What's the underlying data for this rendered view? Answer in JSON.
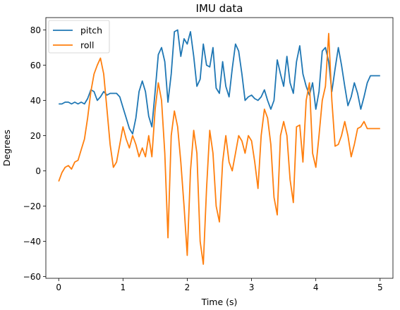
{
  "chart_data": {
    "type": "line",
    "title": "IMU data",
    "xlabel": "Time (s)",
    "ylabel": "Degrees",
    "xlim": [
      -0.2,
      5.2
    ],
    "ylim": [
      -61,
      87
    ],
    "xticks": [
      0,
      1,
      2,
      3,
      4,
      5
    ],
    "yticks": [
      -60,
      -40,
      -20,
      0,
      20,
      40,
      60,
      80
    ],
    "xtick_labels": [
      "0",
      "1",
      "2",
      "3",
      "4",
      "5"
    ],
    "ytick_labels": [
      "−60",
      "−40",
      "−20",
      "0",
      "20",
      "40",
      "60",
      "80"
    ],
    "grid": false,
    "legend_position": "upper-left",
    "series": [
      {
        "name": "pitch",
        "color": "#1f77b4",
        "x": [
          0,
          0.05,
          0.1,
          0.15,
          0.2,
          0.25,
          0.3,
          0.35,
          0.4,
          0.45,
          0.5,
          0.55,
          0.6,
          0.65,
          0.7,
          0.75,
          0.8,
          0.85,
          0.9,
          0.95,
          1.0,
          1.05,
          1.1,
          1.15,
          1.2,
          1.25,
          1.3,
          1.35,
          1.4,
          1.45,
          1.5,
          1.55,
          1.6,
          1.65,
          1.7,
          1.75,
          1.8,
          1.85,
          1.9,
          1.95,
          2.0,
          2.05,
          2.1,
          2.15,
          2.2,
          2.25,
          2.3,
          2.35,
          2.4,
          2.45,
          2.5,
          2.55,
          2.6,
          2.65,
          2.7,
          2.75,
          2.8,
          2.85,
          2.9,
          2.95,
          3.0,
          3.05,
          3.1,
          3.15,
          3.2,
          3.25,
          3.3,
          3.35,
          3.4,
          3.45,
          3.5,
          3.55,
          3.6,
          3.65,
          3.7,
          3.75,
          3.8,
          3.85,
          3.9,
          3.95,
          4.0,
          4.05,
          4.1,
          4.15,
          4.2,
          4.25,
          4.3,
          4.35,
          4.4,
          4.45,
          4.5,
          4.55,
          4.6,
          4.65,
          4.7,
          4.75,
          4.8,
          4.85,
          4.9,
          4.95,
          5.0
        ],
        "values": [
          38,
          38,
          39,
          39,
          38,
          39,
          38,
          39,
          38,
          41,
          46,
          45,
          40,
          42,
          45,
          43,
          44,
          44,
          44,
          42,
          36,
          30,
          24,
          21,
          30,
          45,
          51,
          45,
          31,
          25,
          45,
          66,
          70,
          62,
          39,
          55,
          79,
          80,
          65,
          75,
          72,
          79,
          65,
          48,
          52,
          72,
          60,
          59,
          70,
          47,
          44,
          62,
          48,
          42,
          58,
          72,
          68,
          55,
          40,
          42,
          43,
          41,
          40,
          42,
          46,
          40,
          35,
          40,
          63,
          55,
          48,
          65,
          50,
          44,
          62,
          71,
          55,
          48,
          43,
          50,
          35,
          45,
          68,
          70,
          62,
          45,
          58,
          70,
          60,
          48,
          37,
          42,
          50,
          44,
          35,
          42,
          50,
          54,
          54,
          54,
          54
        ]
      },
      {
        "name": "roll",
        "color": "#ff7f0e",
        "x": [
          0,
          0.05,
          0.1,
          0.15,
          0.2,
          0.25,
          0.3,
          0.35,
          0.4,
          0.45,
          0.5,
          0.55,
          0.6,
          0.65,
          0.7,
          0.75,
          0.8,
          0.85,
          0.9,
          0.95,
          1.0,
          1.05,
          1.1,
          1.15,
          1.2,
          1.25,
          1.3,
          1.35,
          1.4,
          1.45,
          1.5,
          1.55,
          1.6,
          1.65,
          1.7,
          1.75,
          1.8,
          1.85,
          1.9,
          1.95,
          2.0,
          2.05,
          2.1,
          2.15,
          2.2,
          2.25,
          2.3,
          2.35,
          2.4,
          2.45,
          2.5,
          2.55,
          2.6,
          2.65,
          2.7,
          2.75,
          2.8,
          2.85,
          2.9,
          2.95,
          3.0,
          3.05,
          3.1,
          3.15,
          3.2,
          3.25,
          3.3,
          3.35,
          3.4,
          3.45,
          3.5,
          3.55,
          3.6,
          3.65,
          3.7,
          3.75,
          3.8,
          3.85,
          3.9,
          3.95,
          4.0,
          4.05,
          4.1,
          4.15,
          4.2,
          4.25,
          4.3,
          4.35,
          4.4,
          4.45,
          4.5,
          4.55,
          4.6,
          4.65,
          4.7,
          4.75,
          4.8,
          4.85,
          4.9,
          4.95,
          5.0
        ],
        "values": [
          -6,
          -1,
          2,
          3,
          1,
          5,
          6,
          12,
          18,
          30,
          45,
          55,
          60,
          64,
          55,
          35,
          15,
          2,
          5,
          15,
          25,
          18,
          13,
          20,
          15,
          8,
          13,
          8,
          20,
          8,
          35,
          50,
          40,
          10,
          -38,
          20,
          34,
          25,
          5,
          -20,
          -48,
          0,
          23,
          10,
          -40,
          -53,
          -10,
          23,
          10,
          -20,
          -29,
          5,
          20,
          5,
          0,
          10,
          20,
          17,
          10,
          20,
          17,
          5,
          -10,
          20,
          35,
          30,
          15,
          -15,
          -25,
          20,
          28,
          20,
          -5,
          -18,
          25,
          26,
          5,
          40,
          50,
          10,
          2,
          20,
          40,
          48,
          78,
          40,
          14,
          15,
          20,
          28,
          20,
          8,
          15,
          24,
          25,
          28,
          24,
          24,
          24,
          24,
          24
        ]
      }
    ]
  }
}
